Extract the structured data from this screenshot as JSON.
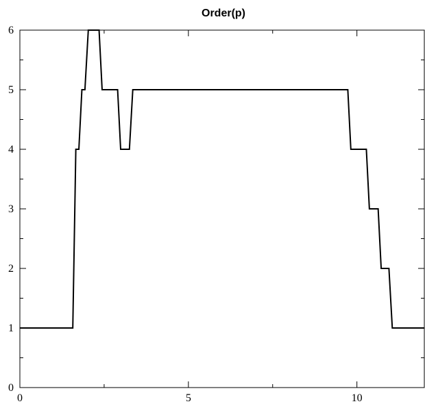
{
  "chart_data": {
    "type": "line",
    "title": "Order(p)",
    "xlabel": "",
    "ylabel": "",
    "xlim": [
      0,
      12
    ],
    "ylim": [
      0,
      6
    ],
    "x_ticks": [
      0,
      5,
      10
    ],
    "y_ticks": [
      0,
      1,
      2,
      3,
      4,
      5,
      6
    ],
    "x_minor_step": 2.5,
    "y_minor_step": 0.5,
    "grid": false,
    "legend": "none",
    "series": [
      {
        "color": "#000000",
        "x": [
          0,
          1.57,
          1.66,
          1.75,
          1.84,
          1.93,
          2.03,
          2.12,
          2.25,
          2.35,
          2.44,
          2.9,
          2.99,
          3.09,
          3.25,
          3.35,
          9.73,
          9.82,
          9.91,
          10.28,
          10.37,
          10.46,
          10.63,
          10.72,
          10.79,
          10.95,
          11.05,
          12
        ],
        "y": [
          1,
          1,
          4,
          4,
          5,
          5,
          6,
          6,
          6,
          6,
          5,
          5,
          4,
          4,
          4,
          5,
          5,
          4,
          4,
          4,
          3,
          3,
          3,
          2,
          2,
          2,
          1,
          1
        ]
      }
    ]
  }
}
